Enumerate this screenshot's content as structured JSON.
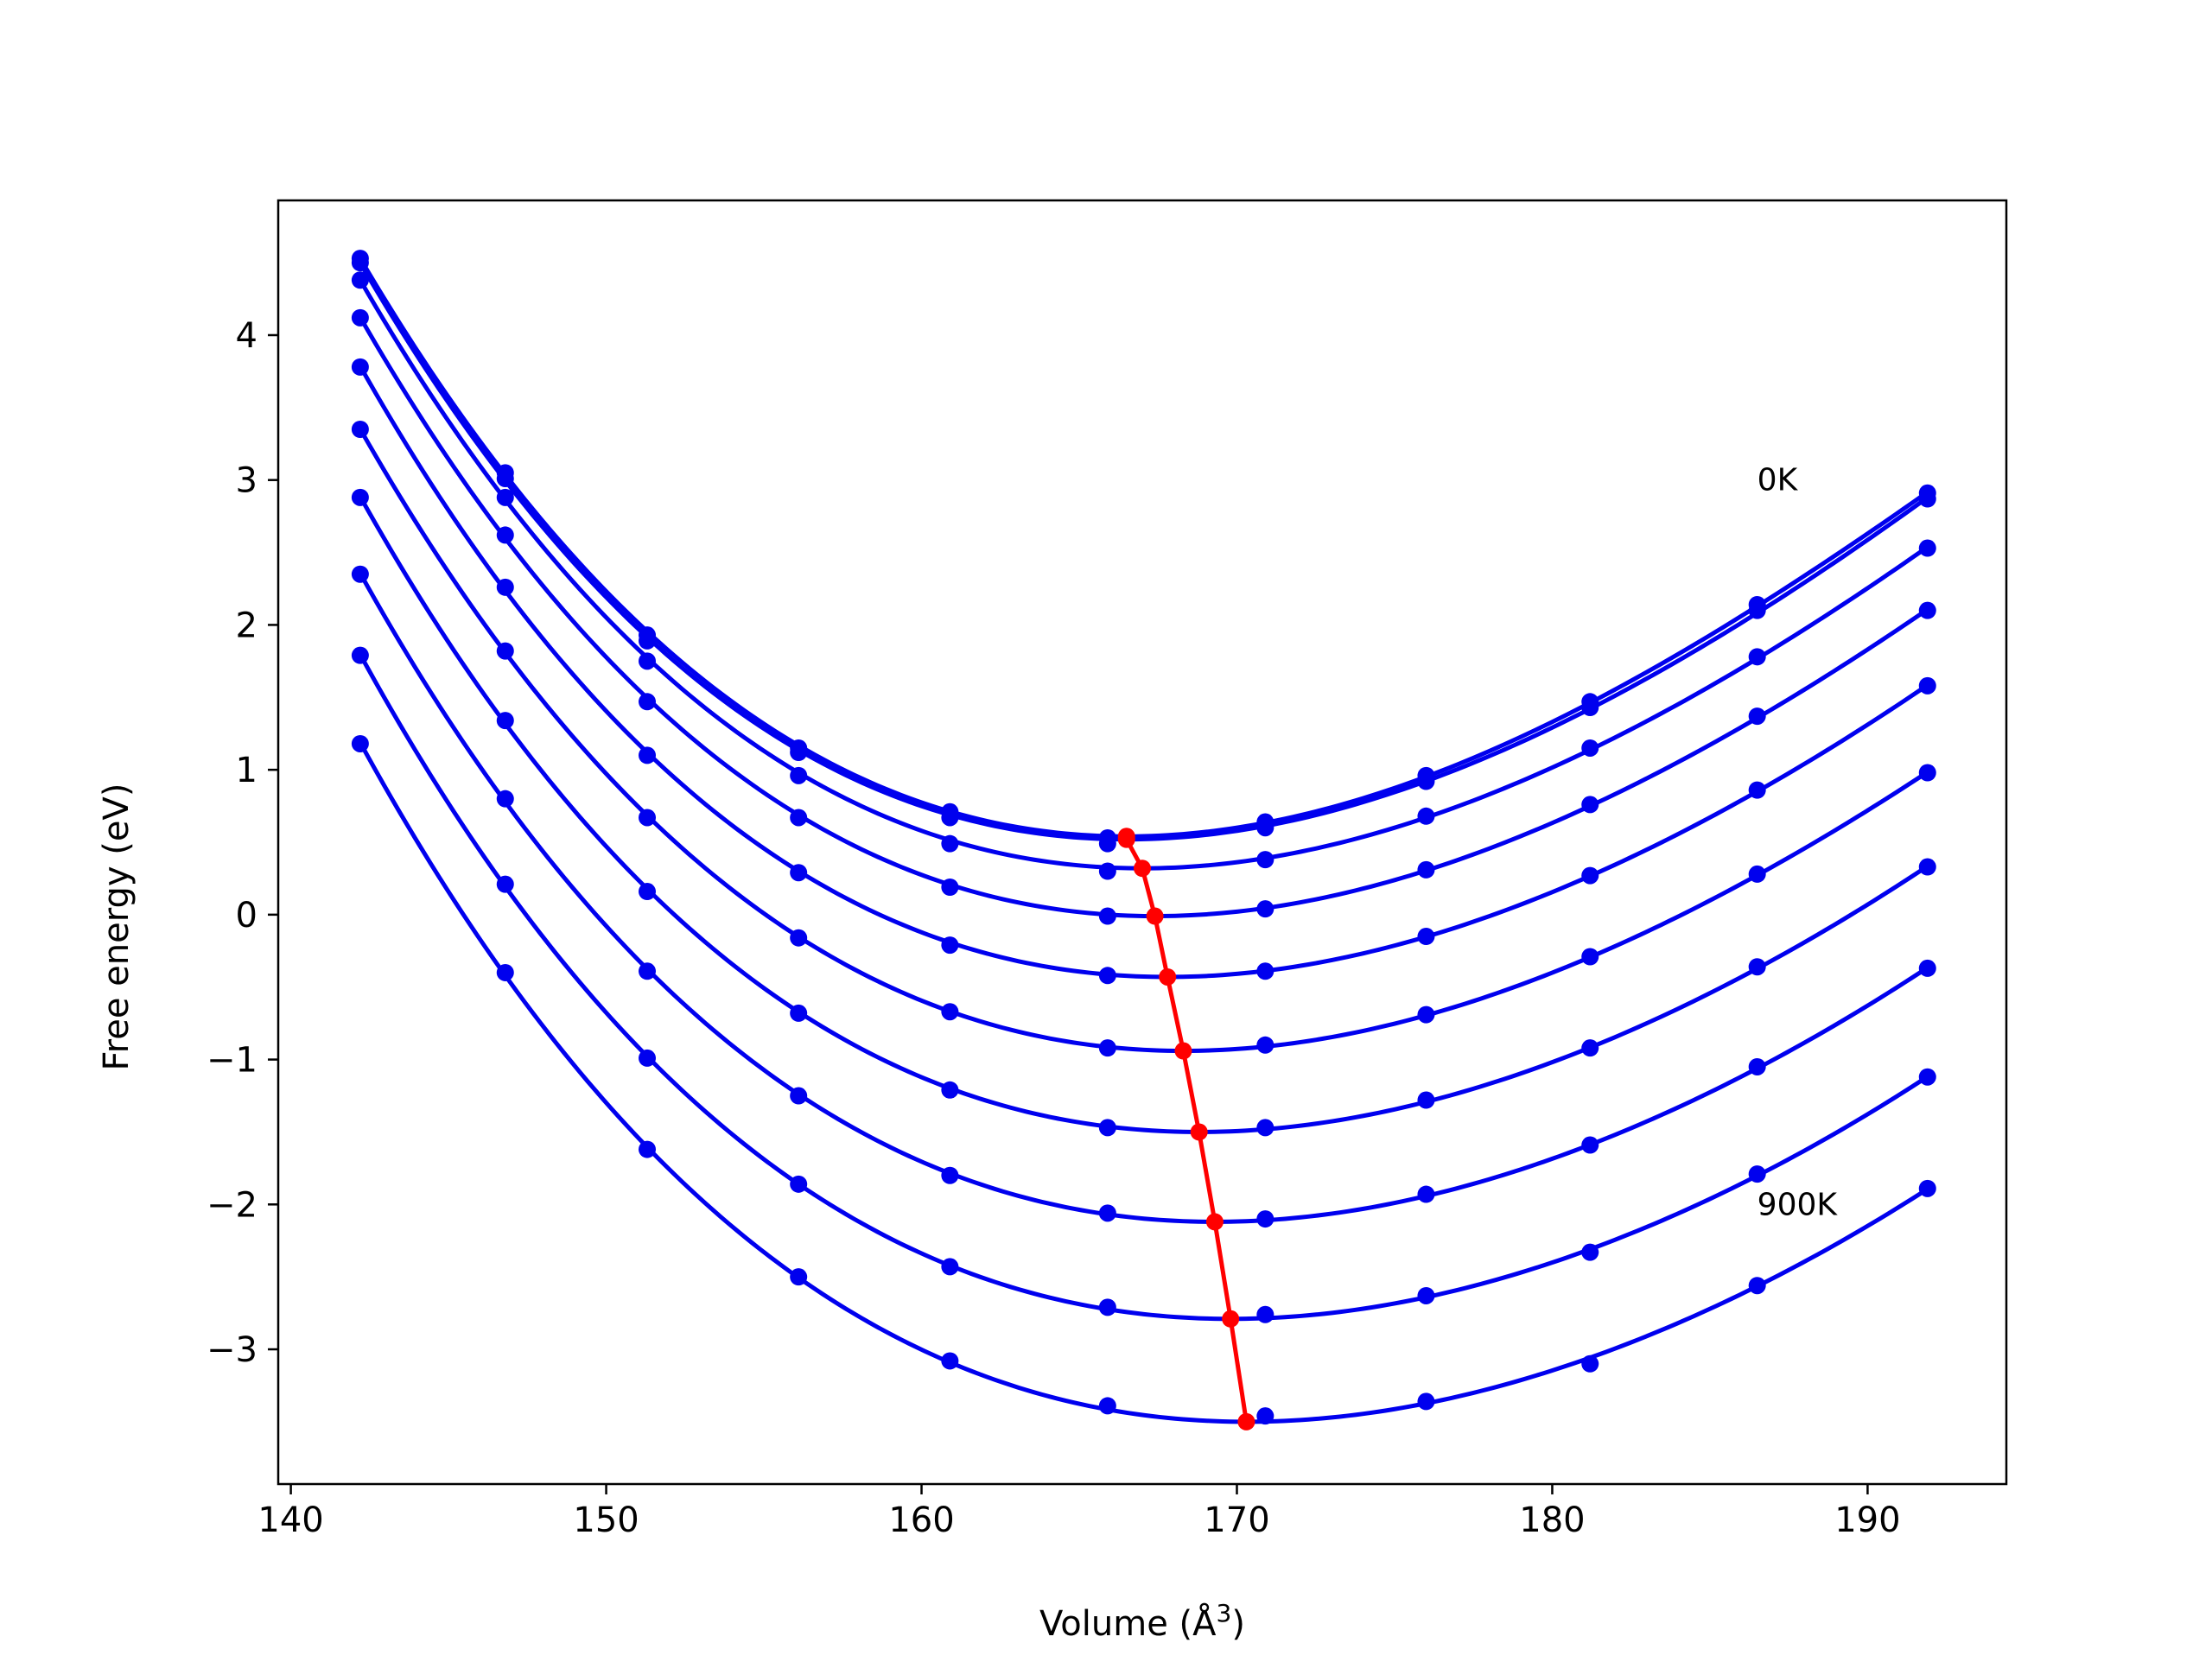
{
  "chart_data": {
    "type": "line",
    "title": "",
    "xlabel": "Volume (Å",
    "xlabel_sup": "3",
    "xlabel_close": ")",
    "ylabel": "Free energy (eV)",
    "xlim": [
      139.6,
      194.4
    ],
    "ylim": [
      -3.93,
      4.93
    ],
    "xticks": [
      140,
      150,
      160,
      170,
      180,
      190
    ],
    "yticks": [
      -3,
      -2,
      -1,
      0,
      1,
      2,
      3,
      4
    ],
    "ytick_labels": [
      "−3",
      "−2",
      "−1",
      "0",
      "1",
      "2",
      "3",
      "4"
    ],
    "grid": false,
    "annotations": [
      {
        "text": "0K",
        "x": 186.5,
        "y": 3.0
      },
      {
        "text": "900K",
        "x": 186.5,
        "y": -2.0
      }
    ],
    "colors": {
      "curves": "#0000ee",
      "minima": "#ff0000",
      "axes": "#000000"
    },
    "x": [
      142.2,
      146.8,
      151.3,
      156.1,
      160.9,
      165.9,
      170.9,
      176.0,
      181.2,
      186.5,
      191.9
    ],
    "series": [
      {
        "values": [
          4.53,
          3.05,
          1.93,
          1.15,
          0.71,
          0.53,
          0.64,
          0.96,
          1.47,
          2.14,
          2.91
        ],
        "min": [
          166.5,
          0.54
        ]
      },
      {
        "values": [
          4.5,
          3.01,
          1.89,
          1.12,
          0.67,
          0.49,
          0.6,
          0.92,
          1.43,
          2.1,
          2.87
        ],
        "min": [
          166.5,
          0.52
        ]
      },
      {
        "values": [
          4.38,
          2.88,
          1.75,
          0.96,
          0.49,
          0.3,
          0.38,
          0.68,
          1.15,
          1.78,
          2.53
        ],
        "min": [
          167.0,
          0.32
        ]
      },
      {
        "values": [
          4.12,
          2.62,
          1.47,
          0.67,
          0.19,
          -0.01,
          0.04,
          0.31,
          0.76,
          1.37,
          2.1
        ],
        "min": [
          167.4,
          -0.01
        ]
      },
      {
        "values": [
          3.78,
          2.26,
          1.1,
          0.29,
          -0.21,
          -0.42,
          -0.39,
          -0.15,
          0.27,
          0.86,
          1.58
        ],
        "min": [
          167.8,
          -0.43
        ]
      },
      {
        "values": [
          3.35,
          1.82,
          0.67,
          -0.16,
          -0.67,
          -0.92,
          -0.9,
          -0.69,
          -0.29,
          0.28,
          0.98
        ],
        "min": [
          168.3,
          -0.94
        ]
      },
      {
        "values": [
          2.88,
          1.34,
          0.16,
          -0.68,
          -1.21,
          -1.47,
          -1.47,
          -1.28,
          -0.92,
          -0.36,
          0.33
        ],
        "min": [
          168.8,
          -1.5
        ]
      },
      {
        "values": [
          2.35,
          0.8,
          -0.39,
          -1.25,
          -1.8,
          -2.06,
          -2.1,
          -1.93,
          -1.59,
          -1.05,
          -0.37
        ],
        "min": [
          169.3,
          -2.12
        ]
      },
      {
        "values": [
          1.79,
          0.21,
          -0.99,
          -1.86,
          -2.43,
          -2.71,
          -2.76,
          -2.63,
          -2.33,
          -1.79,
          -1.12
        ],
        "min": [
          169.8,
          -2.79
        ]
      },
      {
        "values": [
          1.18,
          -0.4,
          -1.62,
          -2.5,
          -3.08,
          -3.39,
          -3.46,
          -3.36,
          -3.1,
          -2.56,
          -1.89
        ],
        "min": [
          170.3,
          -3.5
        ]
      }
    ]
  }
}
